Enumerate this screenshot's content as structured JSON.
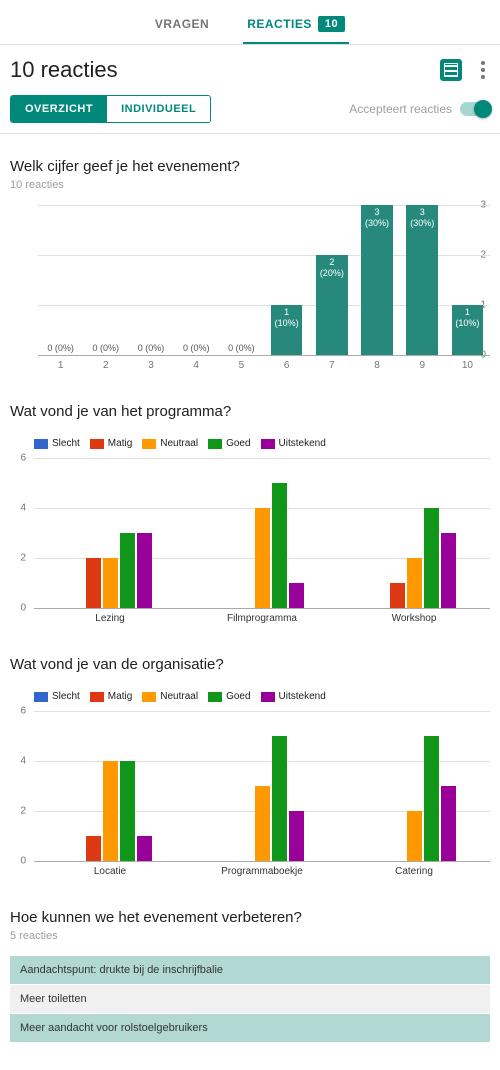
{
  "tabs": {
    "questions": "VRAGEN",
    "responses": "REACTIES",
    "count": "10"
  },
  "header": {
    "title": "10 reacties"
  },
  "segmented": {
    "overview": "OVERZICHT",
    "individual": "INDIVIDUEEL"
  },
  "accept": {
    "label": "Accepteert reacties"
  },
  "colors": {
    "teal": "#00897b",
    "tealBar": "#26897b",
    "blue": "#3366cc",
    "red": "#dc3912",
    "orange": "#ff9900",
    "green": "#109618",
    "purple": "#990099",
    "grid": "#e0e0e0",
    "axis": "#aaaaaa"
  },
  "q1": {
    "title": "Welk cijfer geef je het evenement?",
    "sub": "10 reacties",
    "ymax": 3,
    "yticks": [
      0,
      1,
      2,
      3
    ],
    "categories": [
      "1",
      "2",
      "3",
      "4",
      "5",
      "6",
      "7",
      "8",
      "9",
      "10"
    ],
    "values": [
      0,
      0,
      0,
      0,
      0,
      1,
      2,
      3,
      3,
      1
    ],
    "labels": [
      "0 (0%)",
      "0 (0%)",
      "0 (0%)",
      "0 (0%)",
      "0 (0%)",
      "1 (10%)",
      "2 (20%)",
      "3 (30%)",
      "3 (30%)",
      "1 (10%)"
    ]
  },
  "q2": {
    "title": "Wat vond je van het programma?",
    "legend": [
      "Slecht",
      "Matig",
      "Neutraal",
      "Goed",
      "Uitstekend"
    ],
    "ymax": 6,
    "yticks": [
      0,
      2,
      4,
      6
    ],
    "groups": [
      "Lezing",
      "Filmprogramma",
      "Workshop"
    ],
    "series": [
      [
        0,
        2,
        2,
        3,
        3
      ],
      [
        0,
        0,
        4,
        5,
        1
      ],
      [
        0,
        1,
        2,
        4,
        3
      ]
    ]
  },
  "q3": {
    "title": "Wat vond je van de organisatie?",
    "legend": [
      "Slecht",
      "Matig",
      "Neutraal",
      "Goed",
      "Uitstekend"
    ],
    "ymax": 6,
    "yticks": [
      0,
      2,
      4,
      6
    ],
    "groups": [
      "Locatie",
      "Programmaboekje",
      "Catering"
    ],
    "series": [
      [
        0,
        1,
        4,
        4,
        1
      ],
      [
        0,
        0,
        3,
        5,
        2
      ],
      [
        0,
        0,
        2,
        5,
        3
      ]
    ]
  },
  "q4": {
    "title": "Hoe kunnen we het evenement verbeteren?",
    "sub": "5 reacties",
    "responses": [
      "Aandachtspunt: drukte bij de inschrijfbalie",
      "Meer toiletten",
      "Meer aandacht voor rolstoelgebruikers"
    ]
  }
}
